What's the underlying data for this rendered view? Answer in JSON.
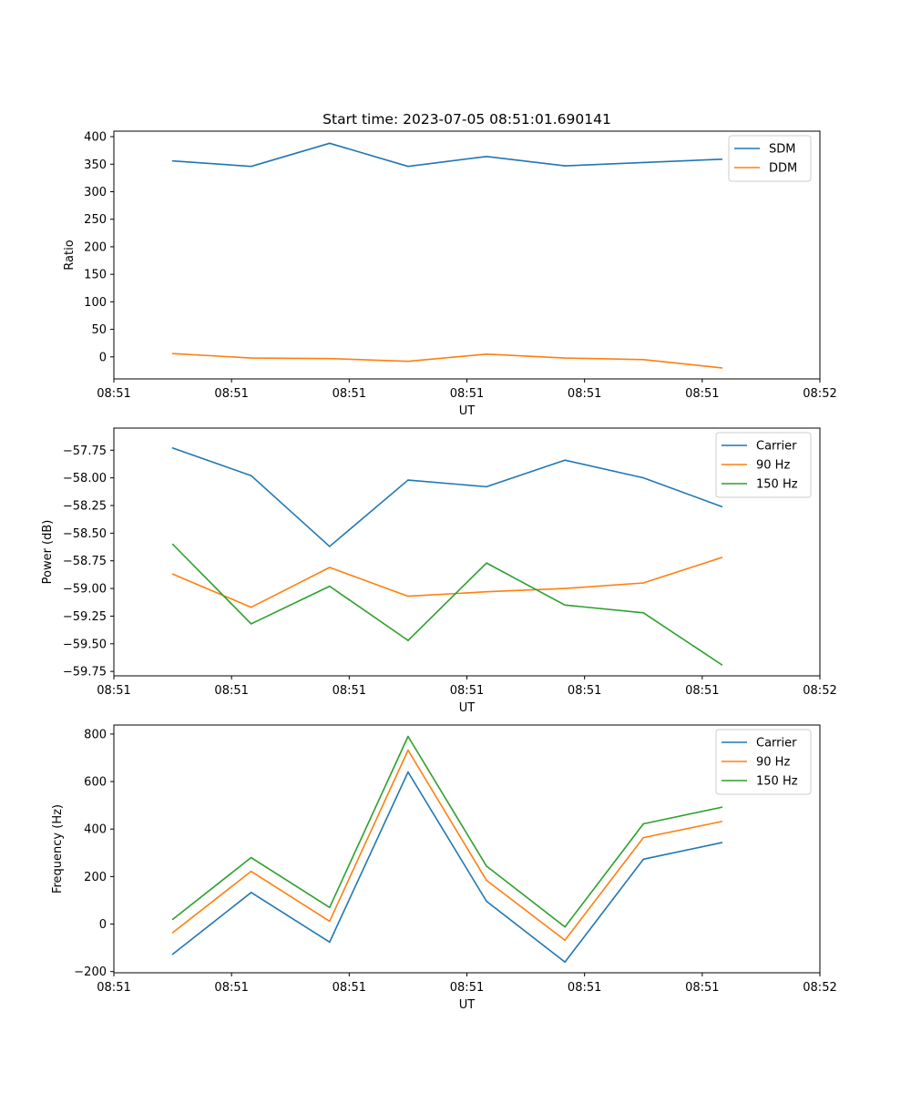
{
  "figure_title": "Start time: 2023-07-05 08:51:01.690141",
  "chart_data": [
    {
      "type": "line",
      "title": "Start time: 2023-07-05 08:51:01.690141",
      "xlabel": "UT",
      "ylabel": "Ratio",
      "xlim": [
        0,
        9
      ],
      "ylim": [
        -40,
        410
      ],
      "x": [
        0.75,
        1.75,
        2.75,
        3.75,
        4.75,
        5.75,
        6.75,
        7.75
      ],
      "xticks": [
        0,
        1.5,
        3,
        4.5,
        6,
        7.5,
        9
      ],
      "xtick_labels": [
        "08:51",
        "08:51",
        "08:51",
        "08:51",
        "08:51",
        "08:51",
        "08:52"
      ],
      "yticks": [
        0,
        50,
        100,
        150,
        200,
        250,
        300,
        350,
        400
      ],
      "ytick_labels": [
        "0",
        "50",
        "100",
        "150",
        "200",
        "250",
        "300",
        "350",
        "400"
      ],
      "legend_position": "upper right",
      "series": [
        {
          "name": "SDM",
          "color": "#1f77b4",
          "values": [
            356,
            346,
            388,
            346,
            364,
            347,
            353,
            359
          ]
        },
        {
          "name": "DDM",
          "color": "#ff7f0e",
          "values": [
            6,
            -2,
            -3,
            -8,
            5,
            -2,
            -5,
            -20
          ]
        }
      ]
    },
    {
      "type": "line",
      "xlabel": "UT",
      "ylabel": "Power (dB)",
      "xlim": [
        0,
        9
      ],
      "ylim": [
        -59.79,
        -57.55
      ],
      "x": [
        0.75,
        1.75,
        2.75,
        3.75,
        4.75,
        5.75,
        6.75,
        7.75
      ],
      "xticks": [
        0,
        1.5,
        3,
        4.5,
        6,
        7.5,
        9
      ],
      "xtick_labels": [
        "08:51",
        "08:51",
        "08:51",
        "08:51",
        "08:51",
        "08:51",
        "08:52"
      ],
      "yticks": [
        -59.75,
        -59.5,
        -59.25,
        -59.0,
        -58.75,
        -58.5,
        -58.25,
        -58.0,
        -57.75
      ],
      "ytick_labels": [
        "−59.75",
        "−59.50",
        "−59.25",
        "−59.00",
        "−58.75",
        "−58.50",
        "−58.25",
        "−58.00",
        "−57.75"
      ],
      "legend_position": "upper right",
      "series": [
        {
          "name": "Carrier",
          "color": "#1f77b4",
          "values": [
            -57.73,
            -57.98,
            -58.62,
            -58.02,
            -58.08,
            -57.84,
            -58.0,
            -58.26
          ]
        },
        {
          "name": "90 Hz",
          "color": "#ff7f0e",
          "values": [
            -58.87,
            -59.17,
            -58.81,
            -59.07,
            -59.03,
            -59.0,
            -58.95,
            -58.72
          ]
        },
        {
          "name": "150 Hz",
          "color": "#2ca02c",
          "values": [
            -58.6,
            -59.32,
            -58.98,
            -59.47,
            -58.77,
            -59.15,
            -59.22,
            -59.69
          ]
        }
      ]
    },
    {
      "type": "line",
      "xlabel": "UT",
      "ylabel": "Frequency (Hz)",
      "xlim": [
        0,
        9
      ],
      "ylim": [
        -205,
        838
      ],
      "x": [
        0.75,
        1.75,
        2.75,
        3.75,
        4.75,
        5.75,
        6.75,
        7.75
      ],
      "xticks": [
        0,
        1.5,
        3,
        4.5,
        6,
        7.5,
        9
      ],
      "xtick_labels": [
        "08:51",
        "08:51",
        "08:51",
        "08:51",
        "08:51",
        "08:51",
        "08:52"
      ],
      "yticks": [
        -200,
        0,
        200,
        400,
        600,
        800
      ],
      "ytick_labels": [
        "−200",
        "0",
        "200",
        "400",
        "600",
        "800"
      ],
      "legend_position": "upper right",
      "series": [
        {
          "name": "Carrier",
          "color": "#1f77b4",
          "values": [
            -127,
            133,
            -76,
            640,
            96,
            -160,
            273,
            343
          ]
        },
        {
          "name": "90 Hz",
          "color": "#ff7f0e",
          "values": [
            -36,
            222,
            12,
            732,
            184,
            -68,
            364,
            432
          ]
        },
        {
          "name": "150 Hz",
          "color": "#2ca02c",
          "values": [
            20,
            280,
            70,
            790,
            244,
            -12,
            422,
            492
          ]
        }
      ]
    }
  ]
}
